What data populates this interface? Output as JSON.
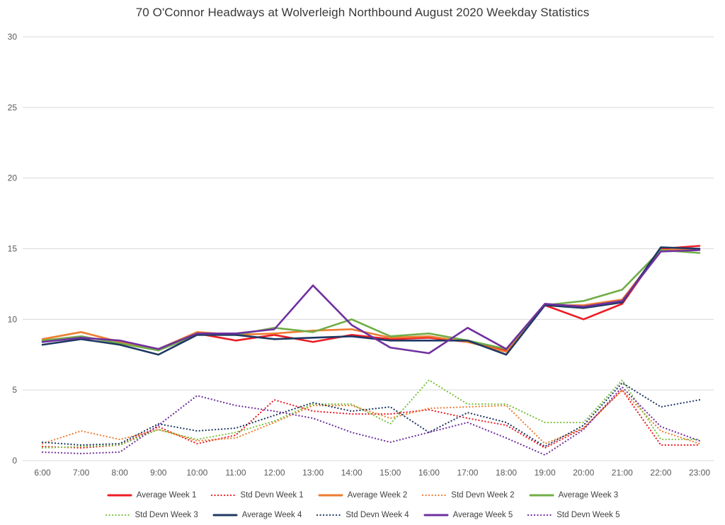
{
  "chart": {
    "title": "70 O'Connor Headways at Wolverleigh Northbound August 2020 Weekday Statistics"
  },
  "chart_data": {
    "type": "line",
    "title": "70 O'Connor Headways at Wolverleigh Northbound August 2020 Weekday Statistics",
    "xlabel": "",
    "ylabel": "",
    "x": [
      "6:00",
      "7:00",
      "8:00",
      "9:00",
      "10:00",
      "11:00",
      "12:00",
      "13:00",
      "14:00",
      "15:00",
      "16:00",
      "17:00",
      "18:00",
      "19:00",
      "20:00",
      "21:00",
      "22:00",
      "23:00"
    ],
    "ylim": [
      0,
      30
    ],
    "yticks": [
      0,
      5,
      10,
      15,
      20,
      25,
      30
    ],
    "grid": true,
    "grid_color": "#d9d9d9",
    "legend_position": "bottom",
    "series": [
      {
        "name": "Average Week 1",
        "color": "#ed1c24",
        "style": "solid",
        "values": [
          8.5,
          8.7,
          8.5,
          7.8,
          9.0,
          8.5,
          8.9,
          8.4,
          8.9,
          8.6,
          8.7,
          8.4,
          7.8,
          11.0,
          10.0,
          11.1,
          15.0,
          15.2
        ]
      },
      {
        "name": "Std Devn Week 1",
        "color": "#ed1c24",
        "style": "dotted",
        "values": [
          1.0,
          0.9,
          1.1,
          2.4,
          1.2,
          1.8,
          4.3,
          3.5,
          3.3,
          3.3,
          3.6,
          3.0,
          2.5,
          0.9,
          2.3,
          5.0,
          1.1,
          1.1
        ]
      },
      {
        "name": "Average Week 2",
        "color": "#ed7d31",
        "style": "solid",
        "values": [
          8.6,
          9.1,
          8.4,
          7.9,
          9.1,
          8.9,
          9.0,
          9.2,
          9.3,
          8.7,
          8.8,
          8.4,
          7.7,
          11.0,
          11.0,
          11.4,
          14.9,
          15.0
        ]
      },
      {
        "name": "Std Devn Week 2",
        "color": "#ed7d31",
        "style": "dotted",
        "values": [
          1.2,
          2.1,
          1.5,
          2.2,
          1.4,
          1.6,
          2.7,
          3.9,
          3.9,
          3.0,
          3.7,
          3.8,
          3.9,
          1.2,
          2.3,
          5.0,
          2.1,
          1.2
        ]
      },
      {
        "name": "Average Week 3",
        "color": "#70ad47",
        "style": "solid",
        "values": [
          8.5,
          8.8,
          8.3,
          7.8,
          8.9,
          8.9,
          9.4,
          9.1,
          10.0,
          8.8,
          9.0,
          8.5,
          7.9,
          11.0,
          11.3,
          12.1,
          14.9,
          14.7
        ]
      },
      {
        "name": "Std Devn Week 3",
        "color": "#7dc142",
        "style": "dotted",
        "values": [
          0.9,
          1.0,
          1.1,
          2.2,
          1.5,
          2.0,
          2.8,
          4.0,
          4.0,
          2.6,
          5.7,
          4.0,
          4.0,
          2.7,
          2.7,
          5.7,
          1.5,
          1.5
        ]
      },
      {
        "name": "Average Week 4",
        "color": "#1f3864",
        "style": "solid",
        "values": [
          8.2,
          8.6,
          8.2,
          7.5,
          8.9,
          8.9,
          8.6,
          8.7,
          8.8,
          8.5,
          8.5,
          8.5,
          7.5,
          11.0,
          10.8,
          11.2,
          15.1,
          15.0
        ]
      },
      {
        "name": "Std Devn Week 4",
        "color": "#1f3864",
        "style": "dotted",
        "values": [
          1.3,
          1.1,
          1.2,
          2.6,
          2.1,
          2.3,
          3.2,
          4.1,
          3.5,
          3.8,
          2.0,
          3.4,
          2.7,
          1.0,
          2.5,
          5.5,
          3.8,
          4.3
        ]
      },
      {
        "name": "Average Week 5",
        "color": "#7030a0",
        "style": "solid",
        "values": [
          8.4,
          8.7,
          8.5,
          7.9,
          9.0,
          9.0,
          9.3,
          12.4,
          9.6,
          8.0,
          7.6,
          9.4,
          7.9,
          11.1,
          10.9,
          11.3,
          14.8,
          14.9
        ]
      },
      {
        "name": "Std Devn Week 5",
        "color": "#7030a0",
        "style": "dotted",
        "values": [
          0.6,
          0.5,
          0.6,
          2.5,
          4.6,
          3.9,
          3.5,
          3.0,
          2.0,
          1.3,
          2.0,
          2.7,
          1.6,
          0.4,
          2.2,
          5.2,
          2.4,
          1.4
        ]
      }
    ],
    "legend_rows": [
      [
        0,
        1,
        2,
        3,
        4
      ],
      [
        5,
        6,
        7,
        8,
        9
      ]
    ]
  }
}
